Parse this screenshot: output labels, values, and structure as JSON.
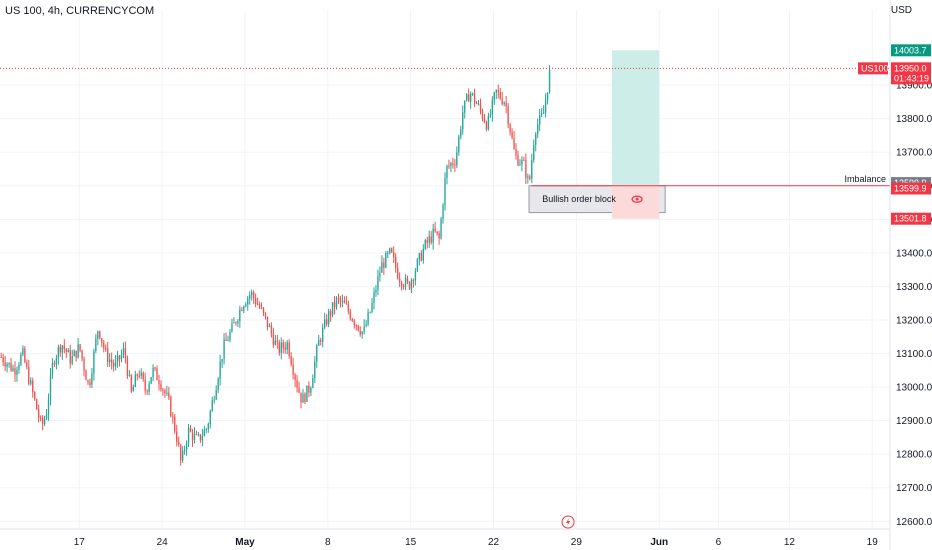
{
  "header": {
    "title": "US 100, 4h, CURRENCYCOM",
    "currency": "USD"
  },
  "chart_data": {
    "type": "candlestick",
    "title": "US 100, 4h, CURRENCYCOM",
    "ylabel": "USD",
    "ylim": [
      12580,
      14100
    ],
    "y_ticks": [
      12600,
      12700,
      12800,
      12900,
      13000,
      13100,
      13200,
      13300,
      13400,
      13500,
      13600,
      13700,
      13800,
      13900
    ],
    "y_tick_labels": [
      "12600.0",
      "12700.0",
      "12800.0",
      "12900.0",
      "13000.0",
      "13100.0",
      "13200.0",
      "13300.0",
      "13400.0",
      "13500.0",
      "13600.0",
      "13700.0",
      "13800.0",
      "13900.0"
    ],
    "x_ticks": [
      {
        "label": "17",
        "day": 17
      },
      {
        "label": "24",
        "day": 24
      },
      {
        "label": "May",
        "day": 31
      },
      {
        "label": "8",
        "day": 38
      },
      {
        "label": "15",
        "day": 45
      },
      {
        "label": "22",
        "day": 52
      },
      {
        "label": "29",
        "day": 59
      },
      {
        "label": "Jun",
        "day": 66
      },
      {
        "label": "6",
        "day": 71
      },
      {
        "label": "12",
        "day": 77
      },
      {
        "label": "19",
        "day": 84
      }
    ],
    "x_range_days": [
      10.3,
      85.5
    ],
    "grid": true,
    "price_waypoints": [
      {
        "day": 10.4,
        "price": 13090
      },
      {
        "day": 11.5,
        "price": 13050
      },
      {
        "day": 12.2,
        "price": 13100
      },
      {
        "day": 13.0,
        "price": 12990
      },
      {
        "day": 13.8,
        "price": 12880
      },
      {
        "day": 14.2,
        "price": 12920
      },
      {
        "day": 14.8,
        "price": 13080
      },
      {
        "day": 15.5,
        "price": 13130
      },
      {
        "day": 16.3,
        "price": 13080
      },
      {
        "day": 17.0,
        "price": 13120
      },
      {
        "day": 17.8,
        "price": 13000
      },
      {
        "day": 18.6,
        "price": 13180
      },
      {
        "day": 19.2,
        "price": 13100
      },
      {
        "day": 20.0,
        "price": 13060
      },
      {
        "day": 20.8,
        "price": 13110
      },
      {
        "day": 21.4,
        "price": 12980
      },
      {
        "day": 22.0,
        "price": 13050
      },
      {
        "day": 22.6,
        "price": 12990
      },
      {
        "day": 23.2,
        "price": 13050
      },
      {
        "day": 23.8,
        "price": 13020
      },
      {
        "day": 24.6,
        "price": 12950
      },
      {
        "day": 25.3,
        "price": 12840
      },
      {
        "day": 25.6,
        "price": 12770
      },
      {
        "day": 26.2,
        "price": 12870
      },
      {
        "day": 27.0,
        "price": 12840
      },
      {
        "day": 27.8,
        "price": 12880
      },
      {
        "day": 28.5,
        "price": 13000
      },
      {
        "day": 29.2,
        "price": 13120
      },
      {
        "day": 30.0,
        "price": 13180
      },
      {
        "day": 30.8,
        "price": 13250
      },
      {
        "day": 31.5,
        "price": 13280
      },
      {
        "day": 32.2,
        "price": 13240
      },
      {
        "day": 33.0,
        "price": 13180
      },
      {
        "day": 33.8,
        "price": 13110
      },
      {
        "day": 34.6,
        "price": 13130
      },
      {
        "day": 35.3,
        "price": 13020
      },
      {
        "day": 35.8,
        "price": 12960
      },
      {
        "day": 36.5,
        "price": 13000
      },
      {
        "day": 37.2,
        "price": 13130
      },
      {
        "day": 38.0,
        "price": 13210
      },
      {
        "day": 38.8,
        "price": 13260
      },
      {
        "day": 39.5,
        "price": 13240
      },
      {
        "day": 40.2,
        "price": 13200
      },
      {
        "day": 41.0,
        "price": 13160
      },
      {
        "day": 41.7,
        "price": 13240
      },
      {
        "day": 42.5,
        "price": 13360
      },
      {
        "day": 43.3,
        "price": 13400
      },
      {
        "day": 44.0,
        "price": 13330
      },
      {
        "day": 44.8,
        "price": 13300
      },
      {
        "day": 45.5,
        "price": 13360
      },
      {
        "day": 46.2,
        "price": 13420
      },
      {
        "day": 47.0,
        "price": 13460
      },
      {
        "day": 47.4,
        "price": 13440
      },
      {
        "day": 48.0,
        "price": 13650
      },
      {
        "day": 48.8,
        "price": 13680
      },
      {
        "day": 49.4,
        "price": 13820
      },
      {
        "day": 50.0,
        "price": 13880
      },
      {
        "day": 50.8,
        "price": 13830
      },
      {
        "day": 51.5,
        "price": 13780
      },
      {
        "day": 52.2,
        "price": 13880
      },
      {
        "day": 53.0,
        "price": 13850
      },
      {
        "day": 53.8,
        "price": 13690
      },
      {
        "day": 54.6,
        "price": 13660
      },
      {
        "day": 55.0,
        "price": 13600
      },
      {
        "day": 55.5,
        "price": 13770
      },
      {
        "day": 56.2,
        "price": 13810
      },
      {
        "day": 56.8,
        "price": 13950
      }
    ],
    "annotations": {
      "last_price": {
        "symbol": "US100",
        "value": "13950.0",
        "countdown": "01:43:19",
        "price": 13950
      },
      "target": {
        "value": "14003.7",
        "price": 14003.7
      },
      "imbalance": {
        "label": "Imbalance",
        "value": "13599.9",
        "price": 13599.9
      },
      "entry": {
        "value": "13599.9",
        "price": 13599.9
      },
      "stop": {
        "value": "13501.8",
        "price": 13501.8
      },
      "order_block": {
        "label": "Bullish order block",
        "top": 13600,
        "bottom": 13520,
        "day_start": 55.0,
        "day_end": 66.5
      },
      "position": {
        "day_start": 62.0,
        "day_end": 66.0,
        "target": 14003.7,
        "entry": 13599.9,
        "stop": 13501.8
      }
    },
    "colors": {
      "up": "#26a69a",
      "down": "#ef5350",
      "grid": "#f0f3fa",
      "text": "#131722",
      "tag_up": "#089981",
      "tag_down": "#f23645",
      "tag_gray": "#787b86",
      "profit_zone": "#cdeee8",
      "loss_zone": "#fcdada",
      "order_block": "#e8e8ec"
    }
  }
}
